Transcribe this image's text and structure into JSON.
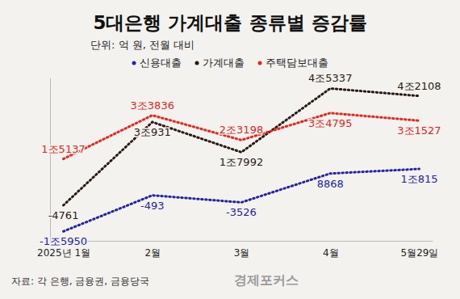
{
  "chart_data": {
    "type": "line",
    "title": "5대은행 가계대출 종류별 증감률",
    "subtitle": "단위: 억 원, 전월 대비",
    "source": "자료: 각 은행, 금융권, 금융당국",
    "credit": "경제포커스",
    "categories": [
      "2025년 1월",
      "2월",
      "3월",
      "4월",
      "5월29일"
    ],
    "series": [
      {
        "name": "신용대출",
        "color": "#2323a8",
        "line_style": "dotted",
        "values": [
          -15950,
          -493,
          -3526,
          8868,
          10815
        ],
        "value_labels": [
          "-1조5950",
          "-493",
          "-3526",
          "8868",
          "1조815"
        ]
      },
      {
        "name": "가계대출",
        "color": "#2b1a12",
        "line_style": "dotted",
        "values": [
          -4761,
          30931,
          17992,
          45337,
          42108
        ],
        "value_labels": [
          "-4761",
          "3조931",
          "1조7992",
          "4조5337",
          "4조2108"
        ]
      },
      {
        "name": "주택담보대출",
        "color": "#e8261c",
        "line_style": "dotted",
        "values": [
          15137,
          33836,
          23198,
          34795,
          31527
        ],
        "value_labels": [
          "1조5137",
          "3조3836",
          "2조3198",
          "3조4795",
          "3조1527"
        ]
      }
    ],
    "ylim": [
      -20000,
      50000
    ],
    "tick_labels": "x",
    "grid": false,
    "legend": "top",
    "data_labels": true
  }
}
